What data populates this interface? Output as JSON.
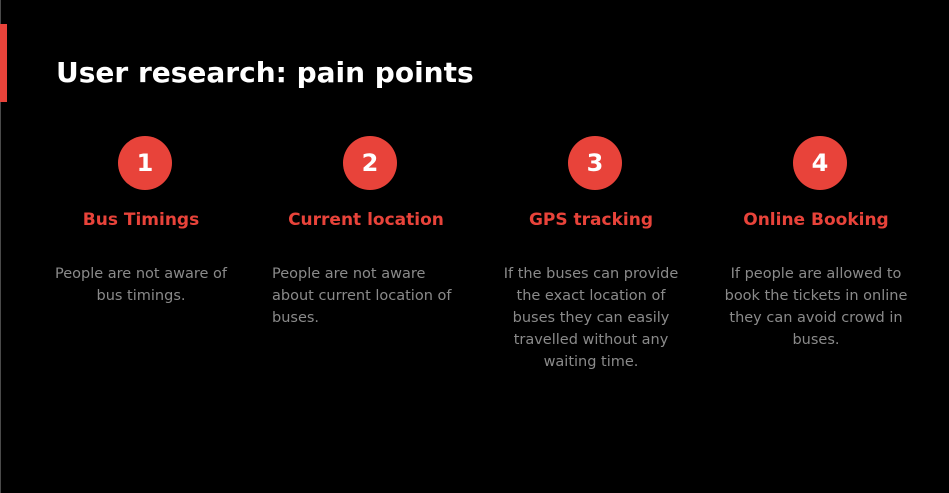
{
  "slide": {
    "title": "User research: pain points",
    "accent_color": "#e8433a",
    "points": [
      {
        "number": "1",
        "heading": "Bus Timings",
        "description": "People are not aware of bus timings."
      },
      {
        "number": "2",
        "heading": "Current location",
        "description": "People are not aware about current location of buses."
      },
      {
        "number": "3",
        "heading": "GPS tracking",
        "description": "If the buses can provide the exact location of buses they can easily travelled without any waiting time."
      },
      {
        "number": "4",
        "heading": "Online Booking",
        "description": "If people are allowed to book the tickets in online they can avoid crowd in buses."
      }
    ]
  }
}
